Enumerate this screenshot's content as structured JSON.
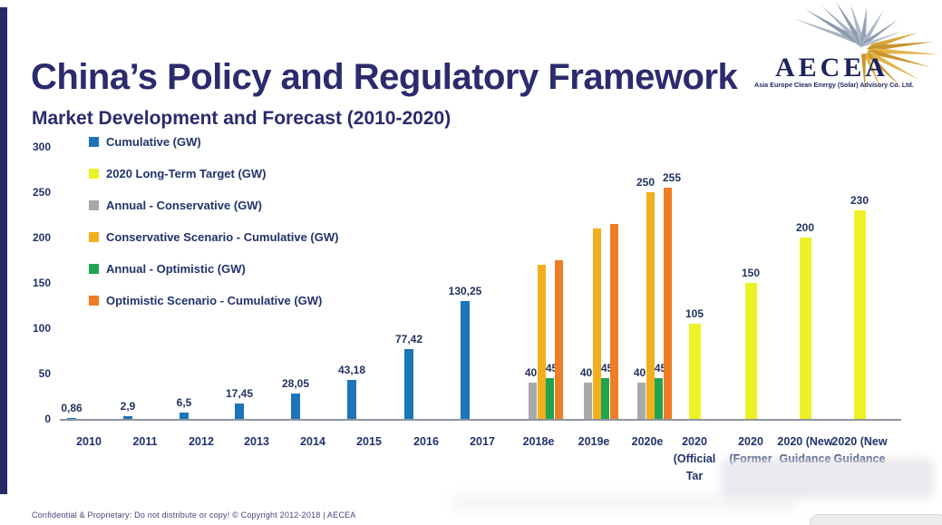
{
  "slide": {
    "title": "China’s Policy and Regulatory Framework",
    "subtitle": "Market Development and Forecast (2010-2020)",
    "footer": "Confidential & Proprietary: Do not distribute or copy! © Copyright 2012-2018 | AECEA"
  },
  "logo": {
    "name": "AECEA",
    "tagline": "Asia Europe Clean Energy (Solar) Advisory Co. Ltd."
  },
  "colors": {
    "navy_text": "#21336B",
    "title": "#2B2B6E",
    "left_strip": "#262B66",
    "axis_line": "#8F959E"
  },
  "chart_data": {
    "type": "bar",
    "title": "Market Development and Forecast (2010-2020)",
    "ylabel": "",
    "xlabel": "",
    "ylim": [
      0,
      300
    ],
    "yticks": [
      0,
      50,
      100,
      150,
      200,
      250,
      300
    ],
    "grid": false,
    "legend_position": "upper-left inside plot",
    "legend": [
      {
        "label": "Cumulative (GW)",
        "color": "#1C74B9",
        "key": "blue"
      },
      {
        "label": "2020 Long-Term Target (GW)",
        "color": "#EDF228",
        "key": "yellow"
      },
      {
        "label": "Annual - Conservative (GW)",
        "color": "#A9A9A9",
        "key": "gray"
      },
      {
        "label": "Conservative Scenario - Cumulative (GW)",
        "color": "#F2AF1D",
        "key": "gold"
      },
      {
        "label": "Annual - Optimistic (GW)",
        "color": "#1FA551",
        "key": "green"
      },
      {
        "label": "Optimistic Scenario - Cumulative (GW)",
        "color": "#EE7D25",
        "key": "orange"
      }
    ],
    "categories": [
      "2010",
      "2011",
      "2012",
      "2013",
      "2014",
      "2015",
      "2016",
      "2017",
      "2018e",
      "2019e",
      "2020e",
      "2020 (Official Tar",
      "2020 (Former",
      "2020 (New Guidance",
      "2020 (New Guidance"
    ],
    "category_label_lines": [
      [
        "2010"
      ],
      [
        "2011"
      ],
      [
        "2012"
      ],
      [
        "2013"
      ],
      [
        "2014"
      ],
      [
        "2015"
      ],
      [
        "2016"
      ],
      [
        "2017"
      ],
      [
        "2018e"
      ],
      [
        "2019e"
      ],
      [
        "2020e"
      ],
      [
        "2020",
        "(Official",
        "Tar"
      ],
      [
        "2020",
        "(Former"
      ],
      [
        "2020 (New",
        "Guidance"
      ],
      [
        "2020 (New",
        "Guidance"
      ]
    ],
    "series": [
      {
        "name": "Cumulative (GW)",
        "key": "blue",
        "color": "#1C74B9",
        "values": [
          0.86,
          2.9,
          6.5,
          17.45,
          28.05,
          43.18,
          77.42,
          130.25,
          null,
          null,
          null,
          null,
          null,
          null,
          null
        ],
        "labels": [
          "0,86",
          "2,9",
          "6,5",
          "17,45",
          "28,05",
          "43,18",
          "77,42",
          "130,25",
          null,
          null,
          null,
          null,
          null,
          null,
          null
        ]
      },
      {
        "name": "2020 Long-Term Target (GW)",
        "key": "yellow",
        "color": "#EDF228",
        "values": [
          null,
          null,
          null,
          null,
          null,
          null,
          null,
          null,
          null,
          null,
          null,
          105,
          150,
          200,
          230
        ],
        "labels": [
          null,
          null,
          null,
          null,
          null,
          null,
          null,
          null,
          null,
          null,
          null,
          "105",
          "150",
          "200",
          "230"
        ]
      },
      {
        "name": "Annual - Conservative (GW)",
        "key": "gray",
        "color": "#A9A9A9",
        "values": [
          null,
          null,
          null,
          null,
          null,
          null,
          null,
          null,
          40,
          40,
          40,
          null,
          null,
          null,
          null
        ],
        "labels": [
          null,
          null,
          null,
          null,
          null,
          null,
          null,
          null,
          "40",
          "40",
          "40",
          null,
          null,
          null,
          null
        ]
      },
      {
        "name": "Conservative Scenario - Cumulative (GW)",
        "key": "gold",
        "color": "#F2AF1D",
        "values": [
          null,
          null,
          null,
          null,
          null,
          null,
          null,
          null,
          170,
          210,
          250,
          null,
          null,
          null,
          null
        ],
        "labels": [
          null,
          null,
          null,
          null,
          null,
          null,
          null,
          null,
          null,
          null,
          "250",
          null,
          null,
          null,
          null
        ]
      },
      {
        "name": "Annual - Optimistic (GW)",
        "key": "green",
        "color": "#1FA551",
        "values": [
          null,
          null,
          null,
          null,
          null,
          null,
          null,
          null,
          45,
          45,
          45,
          null,
          null,
          null,
          null
        ],
        "labels": [
          null,
          null,
          null,
          null,
          null,
          null,
          null,
          null,
          "45",
          "45",
          "45",
          null,
          null,
          null,
          null
        ]
      },
      {
        "name": "Optimistic Scenario - Cumulative (GW)",
        "key": "orange",
        "color": "#EE7D25",
        "values": [
          null,
          null,
          null,
          null,
          null,
          null,
          null,
          null,
          175,
          215,
          255,
          null,
          null,
          null,
          null
        ],
        "labels": [
          null,
          null,
          null,
          null,
          null,
          null,
          null,
          null,
          null,
          null,
          "255",
          null,
          null,
          null,
          null
        ]
      }
    ]
  }
}
